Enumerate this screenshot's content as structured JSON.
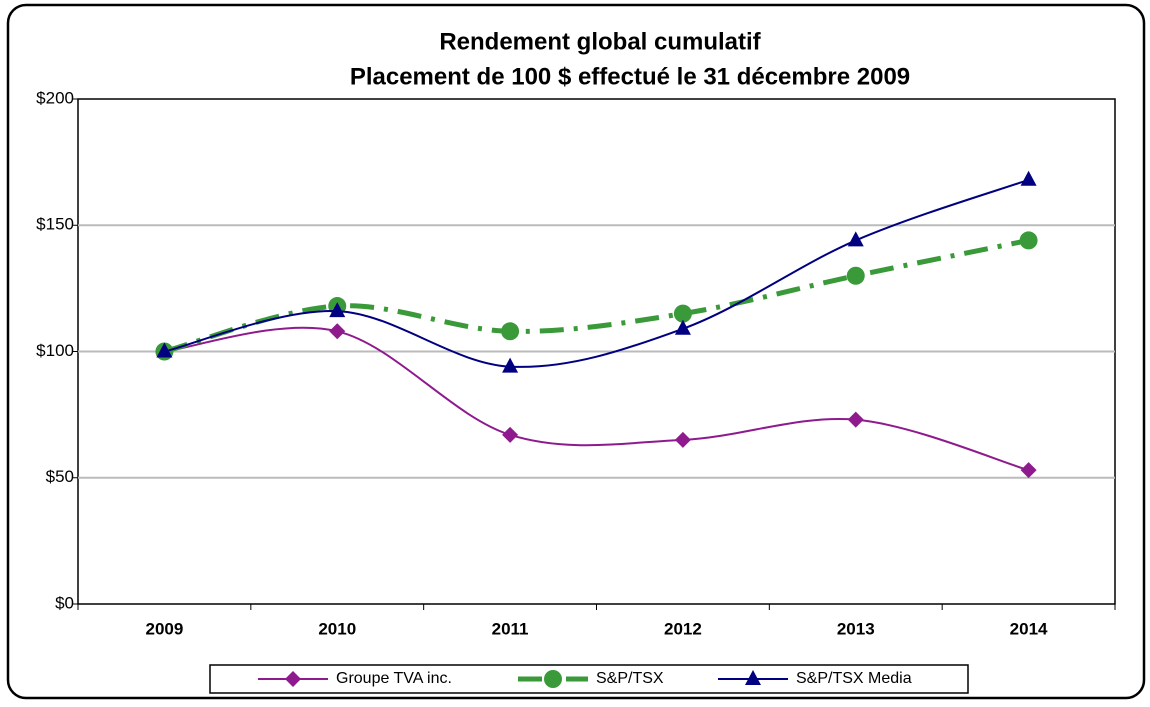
{
  "chart_data": {
    "type": "line",
    "title": "Rendement global cumulatif",
    "subtitle": "Placement de 100 $ effectué le 31 décembre 2009",
    "categories": [
      "2009",
      "2010",
      "2011",
      "2012",
      "2013",
      "2014"
    ],
    "series": [
      {
        "name": "Groupe TVA inc.",
        "color": "#8e1a8e",
        "marker": "diamond",
        "style": "smooth",
        "values": [
          100,
          108,
          67,
          65,
          73,
          53
        ]
      },
      {
        "name": "S&P/TSX",
        "color": "#3a9a3a",
        "marker": "circle",
        "style": "dashdot",
        "values": [
          100,
          118,
          108,
          115,
          130,
          144
        ]
      },
      {
        "name": "S&P/TSX Media",
        "color": "#000080",
        "marker": "triangle",
        "style": "smooth",
        "values": [
          100,
          116,
          94,
          109,
          144,
          168
        ]
      }
    ],
    "ylim": [
      0,
      200
    ],
    "yticks": [
      {
        "value": 0,
        "label": "$0"
      },
      {
        "value": 50,
        "label": "$50"
      },
      {
        "value": 100,
        "label": "$100"
      },
      {
        "value": 150,
        "label": "$150"
      },
      {
        "value": 200,
        "label": "$200"
      }
    ],
    "grid": true,
    "legend": "bottom"
  }
}
